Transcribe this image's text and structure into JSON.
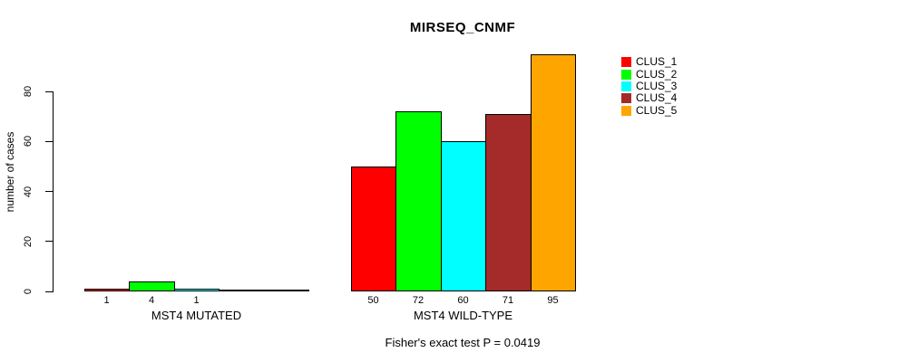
{
  "chart_data": {
    "type": "bar",
    "title": "MIRSEQ_CNMF",
    "ylabel": "number of cases",
    "xlabel": "",
    "annotation": "Fisher's exact test P = 0.0419",
    "ylim": [
      0,
      95
    ],
    "yticks": [
      0,
      20,
      40,
      60,
      80
    ],
    "grid": false,
    "legend_position": "right",
    "series": [
      {
        "name": "CLUS_1",
        "color": "#FF0000"
      },
      {
        "name": "CLUS_2",
        "color": "#00FF00"
      },
      {
        "name": "CLUS_3",
        "color": "#00FFFF"
      },
      {
        "name": "CLUS_4",
        "color": "#A52A2A"
      },
      {
        "name": "CLUS_5",
        "color": "#FFA500"
      }
    ],
    "groups": [
      {
        "label": "MST4 MUTATED",
        "values": [
          1,
          4,
          1,
          0,
          0
        ],
        "bar_labels": [
          "1",
          "4",
          "1",
          "",
          ""
        ]
      },
      {
        "label": "MST4 WILD-TYPE",
        "values": [
          50,
          72,
          60,
          71,
          95
        ],
        "bar_labels": [
          "50",
          "72",
          "60",
          "71",
          "95"
        ]
      }
    ],
    "colors": {
      "axis": "#000000",
      "text": "#000000",
      "background": "#FFFFFF"
    }
  }
}
